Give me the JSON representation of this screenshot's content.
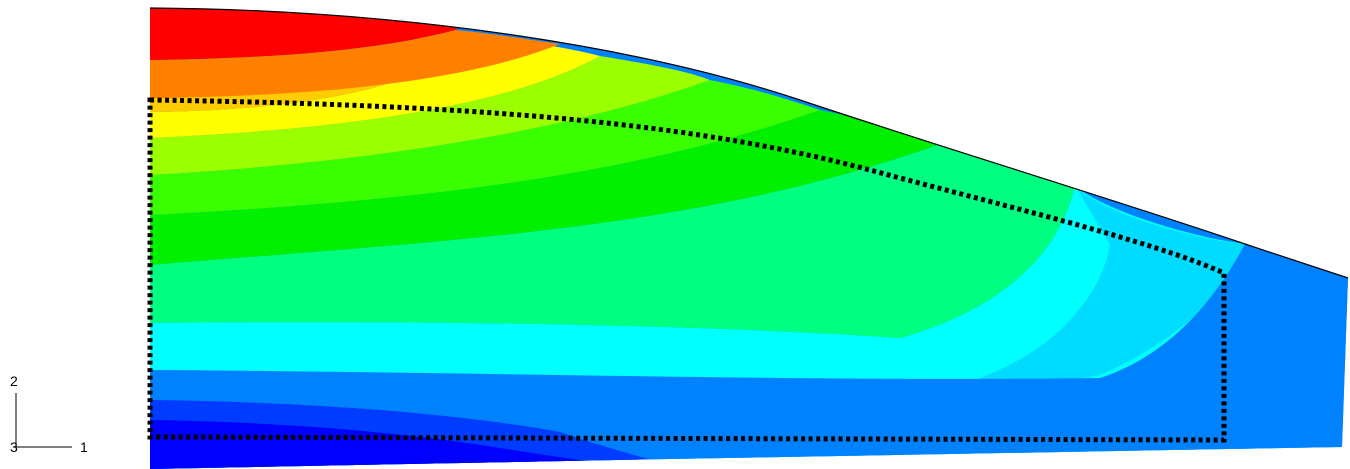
{
  "contour_colors": [
    "#ff0000",
    "#ff8000",
    "#ffcc00",
    "#ffff00",
    "#9cff00",
    "#39ff00",
    "#00f000",
    "#00ff80",
    "#00ffff",
    "#00dcff",
    "#0082ff",
    "#003cff",
    "#0000ff"
  ],
  "undeformed_outline": {
    "style": "dotted",
    "color": "#000000"
  },
  "triad": {
    "axis_vertical": "2",
    "axis_horizontal": "1",
    "axis_out_of_plane": "3"
  }
}
